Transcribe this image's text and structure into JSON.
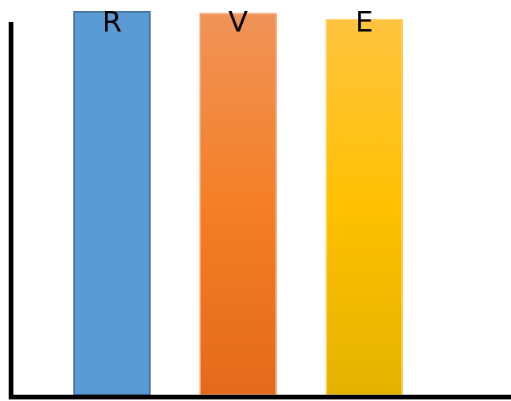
{
  "chart_data": {
    "type": "bar",
    "categories": [
      "R",
      "V",
      "E"
    ],
    "values": [
      97,
      96.5,
      95
    ],
    "colors": [
      "#5b9bd5",
      "#ed7d31",
      "#ffc000"
    ],
    "title": "",
    "xlabel": "",
    "ylabel": "",
    "ylim": [
      0,
      100
    ],
    "grid": false,
    "legend": "none",
    "category_labels_position": "top"
  }
}
